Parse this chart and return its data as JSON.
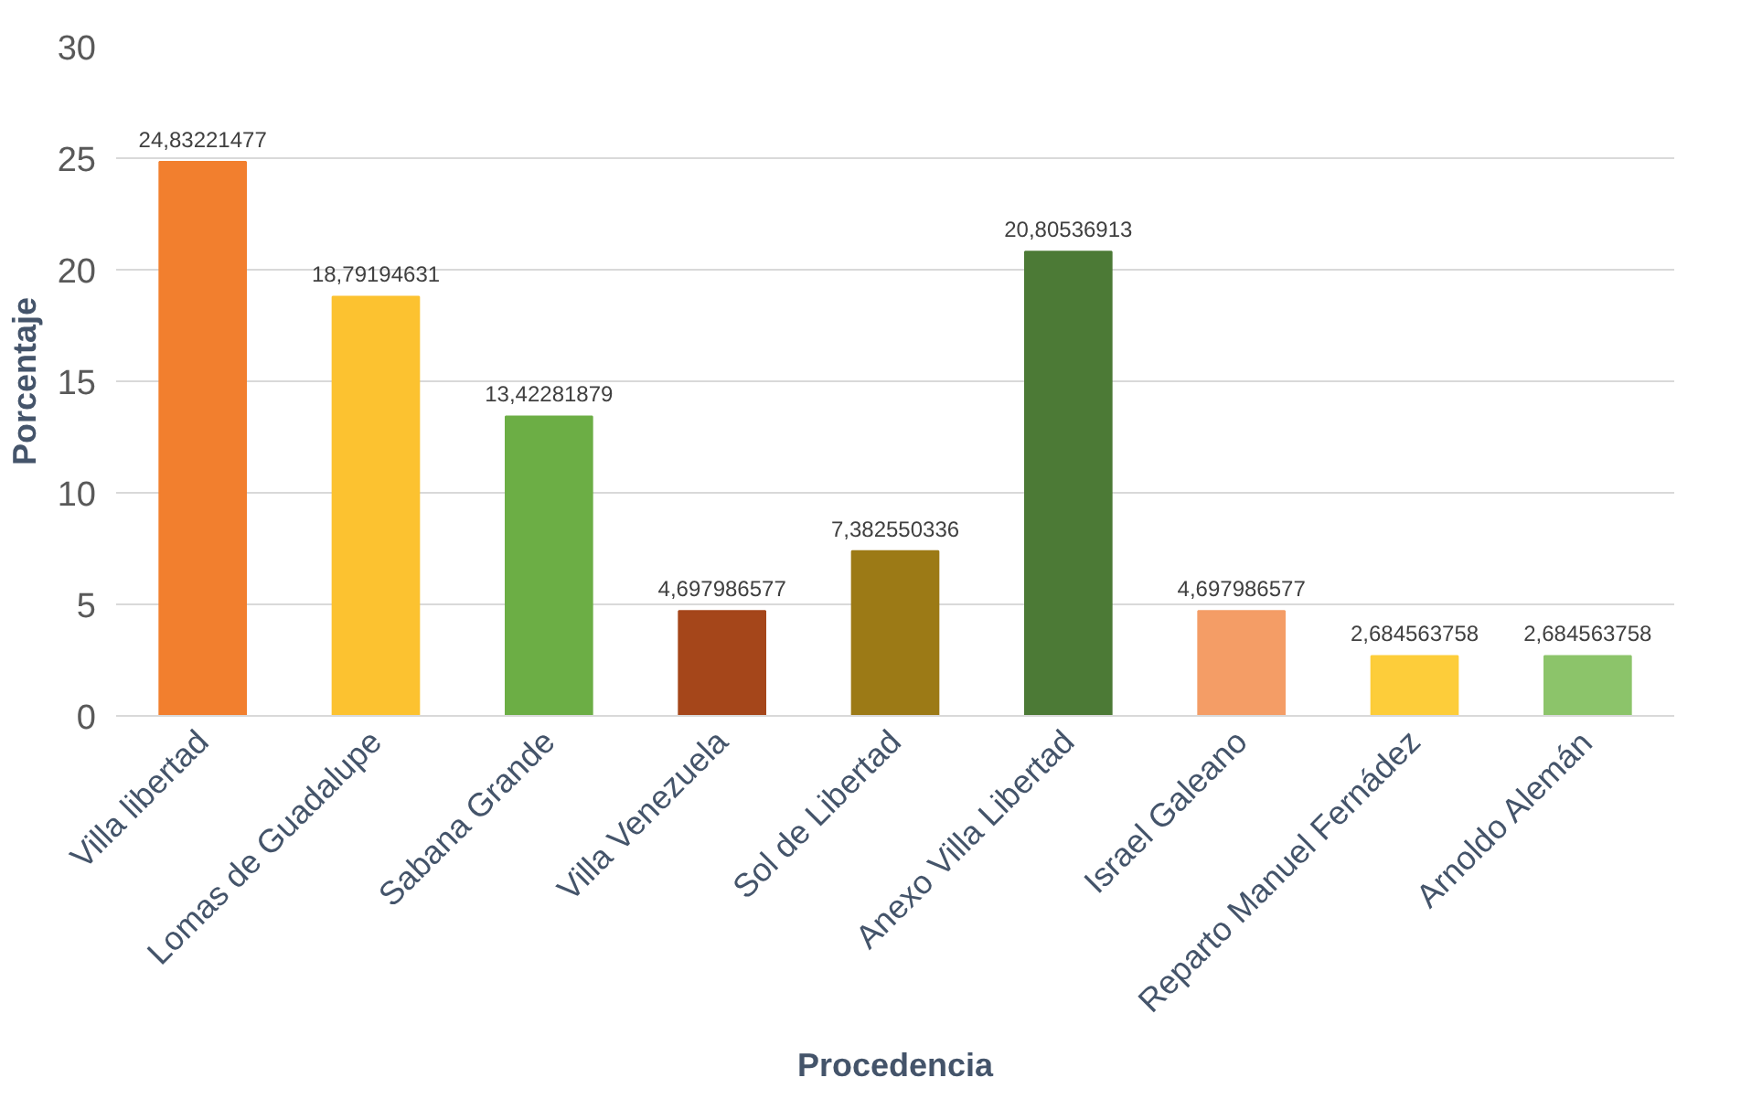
{
  "chart_data": {
    "type": "bar",
    "xlabel": "Procedencia",
    "ylabel": "Porcentaje",
    "categories": [
      "Villa libertad",
      "Lomas de Guadalupe",
      "Sabana Grande",
      "Villa Venezuela",
      "Sol de Libertad",
      "Anexo Villa Libertad",
      "Israel Galeano",
      "Reparto Manuel Fernádez",
      "Arnoldo Alemán"
    ],
    "values": [
      24.83221477,
      18.79194631,
      13.42281879,
      4.697986577,
      7.382550336,
      20.80536913,
      4.697986577,
      2.684563758,
      2.684563758
    ],
    "value_labels": [
      "24,83221477",
      "18,79194631",
      "13,42281879",
      "4,697986577",
      "7,382550336",
      "20,80536913",
      "4,697986577",
      "2,684563758",
      "2,684563758"
    ],
    "colors": [
      "#f27f2e",
      "#fcc230",
      "#6cae45",
      "#a5461a",
      "#9c7a16",
      "#4c7a36",
      "#f49d66",
      "#fdcd3a",
      "#8cc46a"
    ],
    "ylim": [
      0,
      30
    ],
    "yticks": [
      0,
      5,
      10,
      15,
      20,
      25,
      30
    ],
    "grid": "y"
  }
}
